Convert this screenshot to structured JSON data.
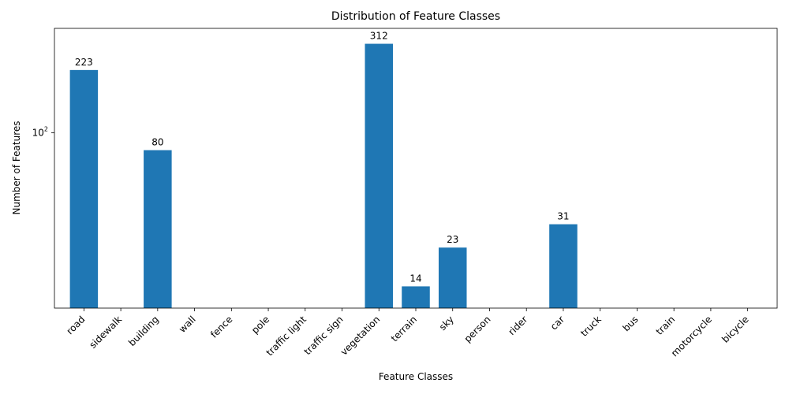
{
  "chart_data": {
    "type": "bar",
    "title": "Distribution of Feature Classes",
    "xlabel": "Feature Classes",
    "ylabel": "Number of Features",
    "yscale": "log",
    "ylim": [
      10.6,
      380
    ],
    "y_ticks": [
      {
        "value": 100,
        "base": "10",
        "exponent": "2"
      }
    ],
    "grid": false,
    "legend": "none",
    "bar_color": "#1f77b4",
    "categories": [
      "road",
      "sidewalk",
      "building",
      "wall",
      "fence",
      "pole",
      "traffic light",
      "traffic sign",
      "vegetation",
      "terrain",
      "sky",
      "person",
      "rider",
      "car",
      "truck",
      "bus",
      "train",
      "motorcycle",
      "bicycle"
    ],
    "values": [
      223,
      0,
      80,
      0,
      0,
      0,
      0,
      0,
      312,
      14,
      23,
      0,
      0,
      31,
      0,
      0,
      0,
      0,
      0
    ],
    "value_labels": [
      "223",
      "",
      "80",
      "",
      "",
      "",
      "",
      "",
      "312",
      "14",
      "23",
      "",
      "",
      "31",
      "",
      "",
      "",
      "",
      ""
    ]
  }
}
